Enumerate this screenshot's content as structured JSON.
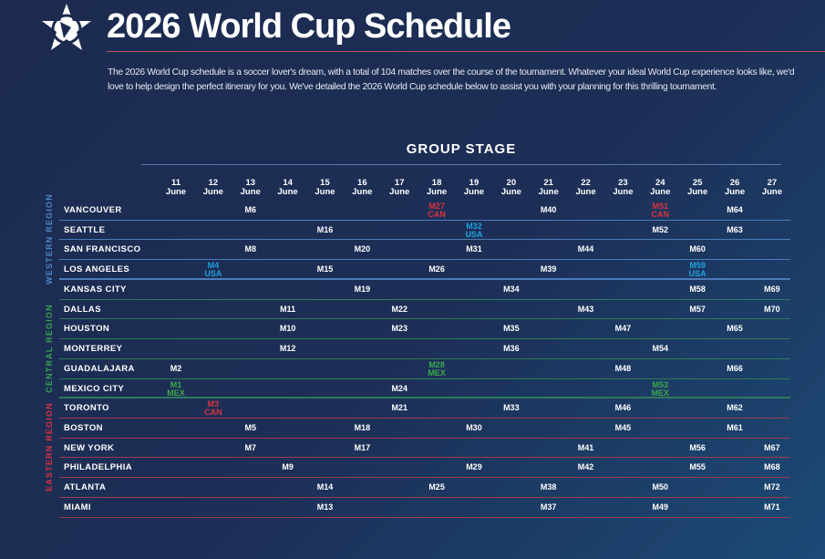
{
  "header": {
    "title": "2026 World Cup Schedule",
    "intro": "The 2026 World Cup schedule is a soccer lover's dream, with a total of 104 matches over the course of the tournament. Whatever your ideal World Cup experience looks like, we'd love to help design the perfect itinerary for you. We've detailed the 2026 World Cup schedule below to assist you with your planning for this thrilling tournament."
  },
  "stage_title": "GROUP STAGE",
  "month": "June",
  "days": [
    "11",
    "12",
    "13",
    "14",
    "15",
    "16",
    "17",
    "18",
    "19",
    "20",
    "21",
    "22",
    "23",
    "24",
    "25",
    "26",
    "27"
  ],
  "colors": {
    "CAN": "#d8323f",
    "USA": "#1fa3df",
    "MEX": "#3aa949",
    "western": "#4a7cb8",
    "central": "#2f7a5a",
    "eastern": "#9a3a4f",
    "western_label": "#4d86c6",
    "central_label": "#37a24b",
    "eastern_label": "#d8323f"
  },
  "regions": [
    {
      "key": "western",
      "label": "WESTERN REGION"
    },
    {
      "key": "central",
      "label": "CENTRAL REGION"
    },
    {
      "key": "eastern",
      "label": "EASTERN REGION"
    }
  ],
  "rows": [
    {
      "city": "VANCOUVER",
      "region": "western",
      "cells": [
        {
          "day": "13",
          "match": "M6"
        },
        {
          "day": "18",
          "match": "M27",
          "host": "CAN"
        },
        {
          "day": "21",
          "match": "M40"
        },
        {
          "day": "24",
          "match": "M51",
          "host": "CAN"
        },
        {
          "day": "26",
          "match": "M64"
        }
      ]
    },
    {
      "city": "SEATTLE",
      "region": "western",
      "cells": [
        {
          "day": "15",
          "match": "M16"
        },
        {
          "day": "19",
          "match": "M32",
          "host": "USA"
        },
        {
          "day": "24",
          "match": "M52"
        },
        {
          "day": "26",
          "match": "M63"
        }
      ]
    },
    {
      "city": "SAN FRANCISCO",
      "region": "western",
      "cells": [
        {
          "day": "13",
          "match": "M8"
        },
        {
          "day": "16",
          "match": "M20"
        },
        {
          "day": "19",
          "match": "M31"
        },
        {
          "day": "22",
          "match": "M44"
        },
        {
          "day": "25",
          "match": "M60"
        }
      ]
    },
    {
      "city": "LOS ANGELES",
      "region": "western",
      "cells": [
        {
          "day": "12",
          "match": "M4",
          "host": "USA"
        },
        {
          "day": "15",
          "match": "M15"
        },
        {
          "day": "18",
          "match": "M26"
        },
        {
          "day": "21",
          "match": "M39"
        },
        {
          "day": "25",
          "match": "M59",
          "host": "USA"
        }
      ]
    },
    {
      "city": "KANSAS CITY",
      "region": "central",
      "cells": [
        {
          "day": "16",
          "match": "M19"
        },
        {
          "day": "20",
          "match": "M34"
        },
        {
          "day": "25",
          "match": "M58"
        },
        {
          "day": "27",
          "match": "M69"
        }
      ]
    },
    {
      "city": "DALLAS",
      "region": "central",
      "cells": [
        {
          "day": "14",
          "match": "M11"
        },
        {
          "day": "17",
          "match": "M22"
        },
        {
          "day": "22",
          "match": "M43"
        },
        {
          "day": "25",
          "match": "M57"
        },
        {
          "day": "27",
          "match": "M70"
        }
      ]
    },
    {
      "city": "HOUSTON",
      "region": "central",
      "cells": [
        {
          "day": "14",
          "match": "M10"
        },
        {
          "day": "17",
          "match": "M23"
        },
        {
          "day": "20",
          "match": "M35"
        },
        {
          "day": "23",
          "match": "M47"
        },
        {
          "day": "26",
          "match": "M65"
        }
      ]
    },
    {
      "city": "MONTERREY",
      "region": "central",
      "cells": [
        {
          "day": "14",
          "match": "M12"
        },
        {
          "day": "20",
          "match": "M36"
        },
        {
          "day": "24",
          "match": "M54"
        }
      ]
    },
    {
      "city": "GUADALAJARA",
      "region": "central",
      "cells": [
        {
          "day": "11",
          "match": "M2"
        },
        {
          "day": "18",
          "match": "M28",
          "host": "MEX"
        },
        {
          "day": "23",
          "match": "M48"
        },
        {
          "day": "26",
          "match": "M66"
        }
      ]
    },
    {
      "city": "MEXICO CITY",
      "region": "central",
      "cells": [
        {
          "day": "11",
          "match": "M1",
          "host": "MEX"
        },
        {
          "day": "17",
          "match": "M24"
        },
        {
          "day": "24",
          "match": "M53",
          "host": "MEX"
        }
      ]
    },
    {
      "city": "TORONTO",
      "region": "eastern",
      "cells": [
        {
          "day": "12",
          "match": "M3",
          "host": "CAN"
        },
        {
          "day": "17",
          "match": "M21"
        },
        {
          "day": "20",
          "match": "M33"
        },
        {
          "day": "23",
          "match": "M46"
        },
        {
          "day": "26",
          "match": "M62"
        }
      ]
    },
    {
      "city": "BOSTON",
      "region": "eastern",
      "cells": [
        {
          "day": "13",
          "match": "M5"
        },
        {
          "day": "16",
          "match": "M18"
        },
        {
          "day": "19",
          "match": "M30"
        },
        {
          "day": "23",
          "match": "M45"
        },
        {
          "day": "26",
          "match": "M61"
        }
      ]
    },
    {
      "city": "NEW YORK",
      "region": "eastern",
      "cells": [
        {
          "day": "13",
          "match": "M7"
        },
        {
          "day": "16",
          "match": "M17"
        },
        {
          "day": "22",
          "match": "M41"
        },
        {
          "day": "25",
          "match": "M56"
        },
        {
          "day": "27",
          "match": "M67"
        }
      ]
    },
    {
      "city": "PHILADELPHIA",
      "region": "eastern",
      "cells": [
        {
          "day": "14",
          "match": "M9"
        },
        {
          "day": "19",
          "match": "M29"
        },
        {
          "day": "22",
          "match": "M42"
        },
        {
          "day": "25",
          "match": "M55"
        },
        {
          "day": "27",
          "match": "M68"
        }
      ]
    },
    {
      "city": "ATLANTA",
      "region": "eastern",
      "cells": [
        {
          "day": "15",
          "match": "M14"
        },
        {
          "day": "18",
          "match": "M25"
        },
        {
          "day": "21",
          "match": "M38"
        },
        {
          "day": "24",
          "match": "M50"
        },
        {
          "day": "27",
          "match": "M72"
        }
      ]
    },
    {
      "city": "MIAMI",
      "region": "eastern",
      "cells": [
        {
          "day": "15",
          "match": "M13"
        },
        {
          "day": "21",
          "match": "M37"
        },
        {
          "day": "24",
          "match": "M49"
        },
        {
          "day": "27",
          "match": "M71"
        }
      ]
    }
  ]
}
